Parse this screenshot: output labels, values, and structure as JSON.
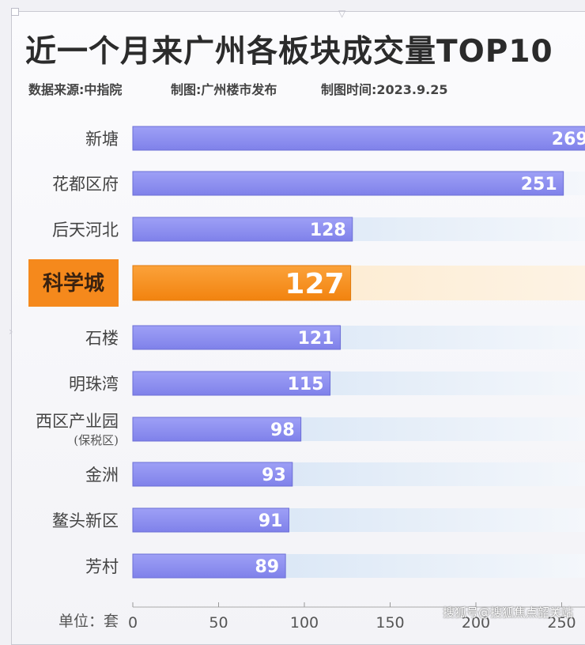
{
  "title": "近一个月来广州各板块成交量TOP10",
  "source_line": {
    "source": "数据来源:中指院",
    "made_by": "制图:广州楼市发布",
    "made_time": "制图时间:2023.9.25"
  },
  "chart_data": {
    "type": "bar",
    "orientation": "horizontal",
    "categories": [
      "新塘",
      "花都区府",
      "后天河北",
      "科学城",
      "石楼",
      "明珠湾",
      "西区产业园",
      "金洲",
      "鳌头新区",
      "芳村"
    ],
    "category_sublabels": {
      "西区产业园": "(保税区)"
    },
    "values": [
      269,
      251,
      128,
      127,
      121,
      115,
      98,
      93,
      91,
      89
    ],
    "highlight": "科学城",
    "unit_label": "单位：套",
    "x_ticks": [
      0,
      50,
      100,
      150,
      200,
      250
    ],
    "xlim": [
      0,
      262
    ],
    "colors": {
      "bar": "#8b8df2",
      "highlight_bar": "#f7901e",
      "track": "#dde8f6",
      "label_box": "#f5891c"
    }
  },
  "watermark": "搜狐号@搜狐焦点韶关站"
}
